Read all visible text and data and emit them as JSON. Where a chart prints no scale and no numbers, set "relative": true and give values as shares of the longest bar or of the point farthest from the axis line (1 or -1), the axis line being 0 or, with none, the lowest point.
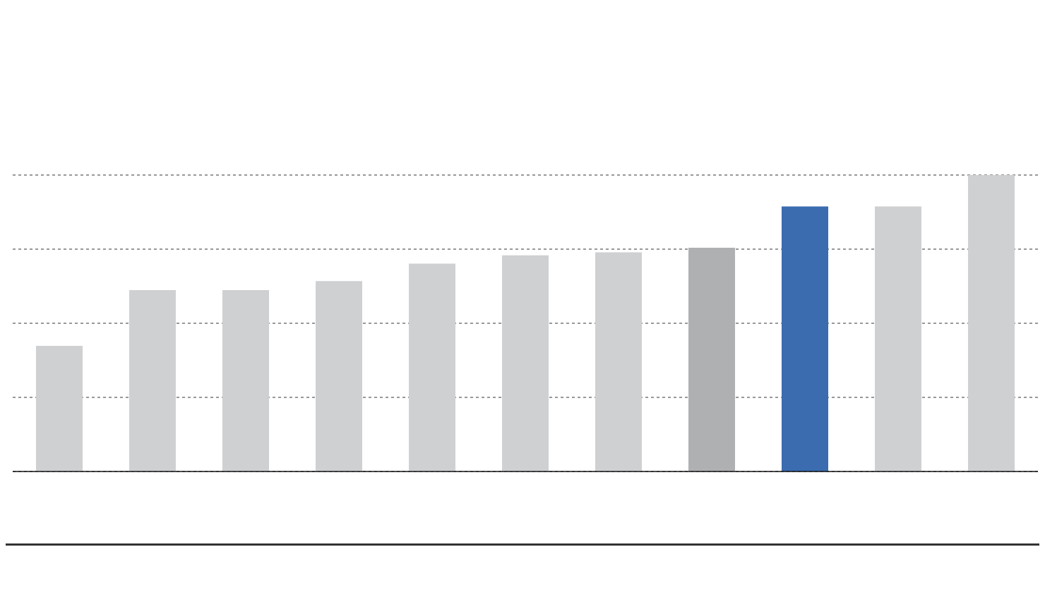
{
  "chart_data": {
    "type": "bar",
    "relative": true,
    "grid": "y",
    "categories": [
      null,
      null,
      null,
      null,
      null,
      null,
      null,
      null,
      null,
      null,
      null
    ],
    "values": [
      0.424,
      0.612,
      0.612,
      0.642,
      0.701,
      0.729,
      0.739,
      0.755,
      0.894,
      0.894,
      1
    ],
    "colors": [
      "#cfd0d2",
      "#cfd0d2",
      "#cfd0d2",
      "#cfd0d2",
      "#cfd0d2",
      "#cfd0d2",
      "#cfd0d2",
      "#afb0b2",
      "#3b6caf",
      "#cfd0d2",
      "#cfd0d2"
    ]
  }
}
